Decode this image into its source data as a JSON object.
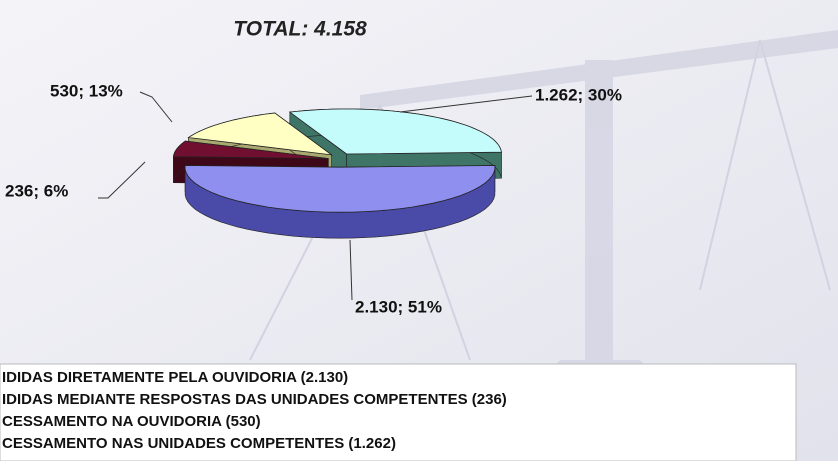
{
  "chart_data": {
    "type": "pie",
    "title": "TOTAL: 4.158",
    "categories": [
      "IDIDAS DIRETAMENTE PELA OUVIDORIA (2.130)",
      "IDIDAS MEDIANTE RESPOSTAS DAS UNIDADES COMPETENTES (236)",
      "CESSAMENTO NA OUVIDORIA (530)",
      "CESSAMENTO NAS UNIDADES COMPETENTES (1.262)"
    ],
    "values": [
      2130,
      236,
      530,
      1262
    ],
    "value_labels": [
      "2.130; 51%",
      "236; 6%",
      "530; 13%",
      "1.262; 30%"
    ],
    "colors": [
      "#8f8ff0",
      "#700f30",
      "#ffffc4",
      "#c4fcfc"
    ],
    "side_colors": [
      "#4a4aa8",
      "#3e0818",
      "#a8a870",
      "#3f7566"
    ]
  }
}
